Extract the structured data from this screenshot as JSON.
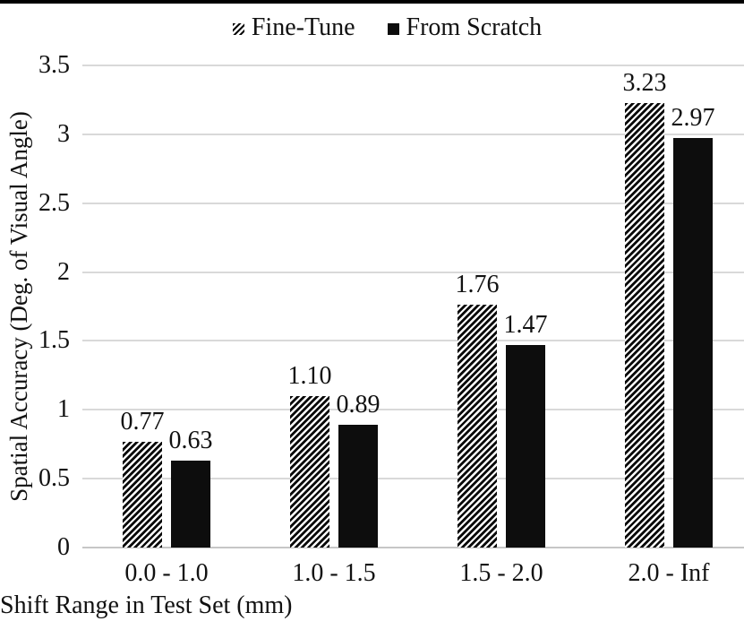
{
  "chart_data": {
    "type": "bar",
    "title": "",
    "categories": [
      "0.0 - 1.0",
      "1.0 - 1.5",
      "1.5 - 2.0",
      "2.0 - Inf"
    ],
    "series": [
      {
        "name": "Fine-Tune",
        "style": "hatched",
        "values": [
          0.77,
          1.1,
          1.76,
          3.23
        ]
      },
      {
        "name": "From Scratch",
        "style": "solid",
        "values": [
          0.63,
          0.89,
          1.47,
          2.97
        ]
      }
    ],
    "value_labels": [
      [
        "0.77",
        "1.10",
        "1.76",
        "3.23"
      ],
      [
        "0.63",
        "0.89",
        "1.47",
        "2.97"
      ]
    ],
    "xlabel": "Shift Range in Test Set (mm)",
    "ylabel": "Spatial Accuracy (Deg. of Visual Angle)",
    "ylim": [
      0,
      3.5
    ],
    "ytick_step": 0.5,
    "ytick_labels": [
      "0",
      "0.5",
      "1",
      "1.5",
      "2",
      "2.5",
      "3",
      "3.5"
    ],
    "grid": true,
    "legend_position": "top-center",
    "bar_labels_shown": true
  },
  "icons": {
    "fine_tune_marker": "diagonal-hatch-swatch",
    "from_scratch_marker": "solid-square-swatch"
  },
  "colors": {
    "bar_fill": "#0d0d0d",
    "hatch_stroke": "#0a0a0a",
    "gridline": "#d9d9d9",
    "axis_line": "#c6c6c6",
    "text": "#111111",
    "top_rule": "#000000",
    "background": "#ffffff"
  }
}
